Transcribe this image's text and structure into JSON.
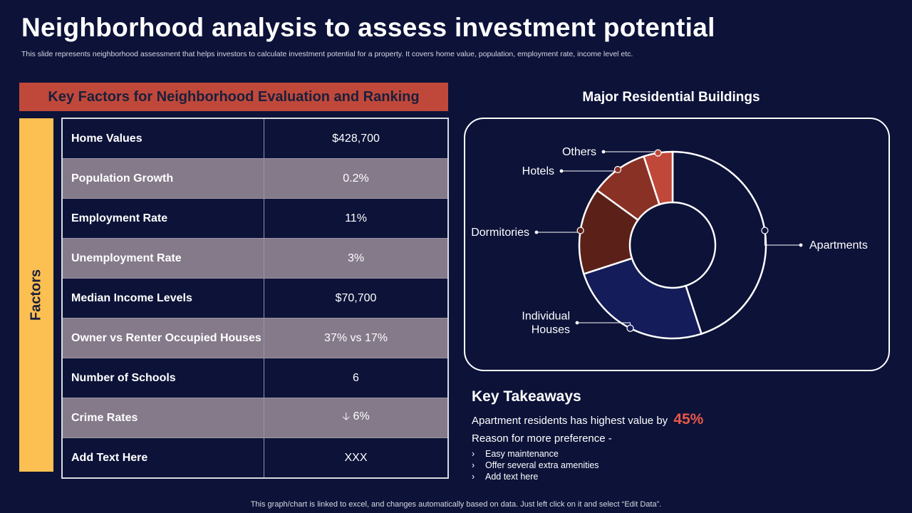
{
  "header": {
    "title": "Neighborhood analysis to assess investment potential",
    "subtitle": "This slide represents neighborhood assessment that helps investors to calculate investment potential for a property.  It covers home value, population, employment rate, income level etc."
  },
  "factors_section": {
    "header": "Key Factors for Neighborhood Evaluation and Ranking",
    "side_label": "Factors",
    "rows": [
      {
        "label": "Home Values",
        "value": "$428,700"
      },
      {
        "label": "Population Growth",
        "value": "0.2%"
      },
      {
        "label": "Employment Rate",
        "value": "11%"
      },
      {
        "label": "Unemployment Rate",
        "value": "3%"
      },
      {
        "label": "Median Income Levels",
        "value": "$70,700"
      },
      {
        "label": "Owner vs Renter Occupied Houses",
        "value": "37% vs 17%"
      },
      {
        "label": "Number of Schools",
        "value": "6"
      },
      {
        "label": "Crime Rates",
        "value": "6%",
        "icon": "arrow-down-icon",
        "icon_glyph": "🡣"
      },
      {
        "label": "Add Text Here",
        "value": "XXX"
      }
    ]
  },
  "chart_data": {
    "type": "pie",
    "title": "Major Residential Buildings",
    "variant": "donut",
    "categories": [
      "Apartments",
      "Individual Houses",
      "Dormitories",
      "Hotels",
      "Others"
    ],
    "label_lines": [
      [
        "Apartments"
      ],
      [
        "Individual",
        "Houses"
      ],
      [
        "Dormitories"
      ],
      [
        "Hotels"
      ],
      [
        "Others"
      ]
    ],
    "values": [
      45,
      25,
      15,
      10,
      5
    ],
    "colors": [
      "#0c1238",
      "#141c5a",
      "#5b2119",
      "#8a3125",
      "#c0483a"
    ]
  },
  "takeaways": {
    "title": "Key Takeaways",
    "highlight_text": "Apartment residents has highest value by",
    "highlight_value": "45%",
    "reason": "Reason for more preference -",
    "items": [
      "Easy maintenance",
      "Offer  several  extra amenities",
      "Add text here"
    ],
    "bullet": "›"
  },
  "footer": "This graph/chart is linked to excel,  and changes automatically based on data. Just left click on it and select “Edit Data”."
}
